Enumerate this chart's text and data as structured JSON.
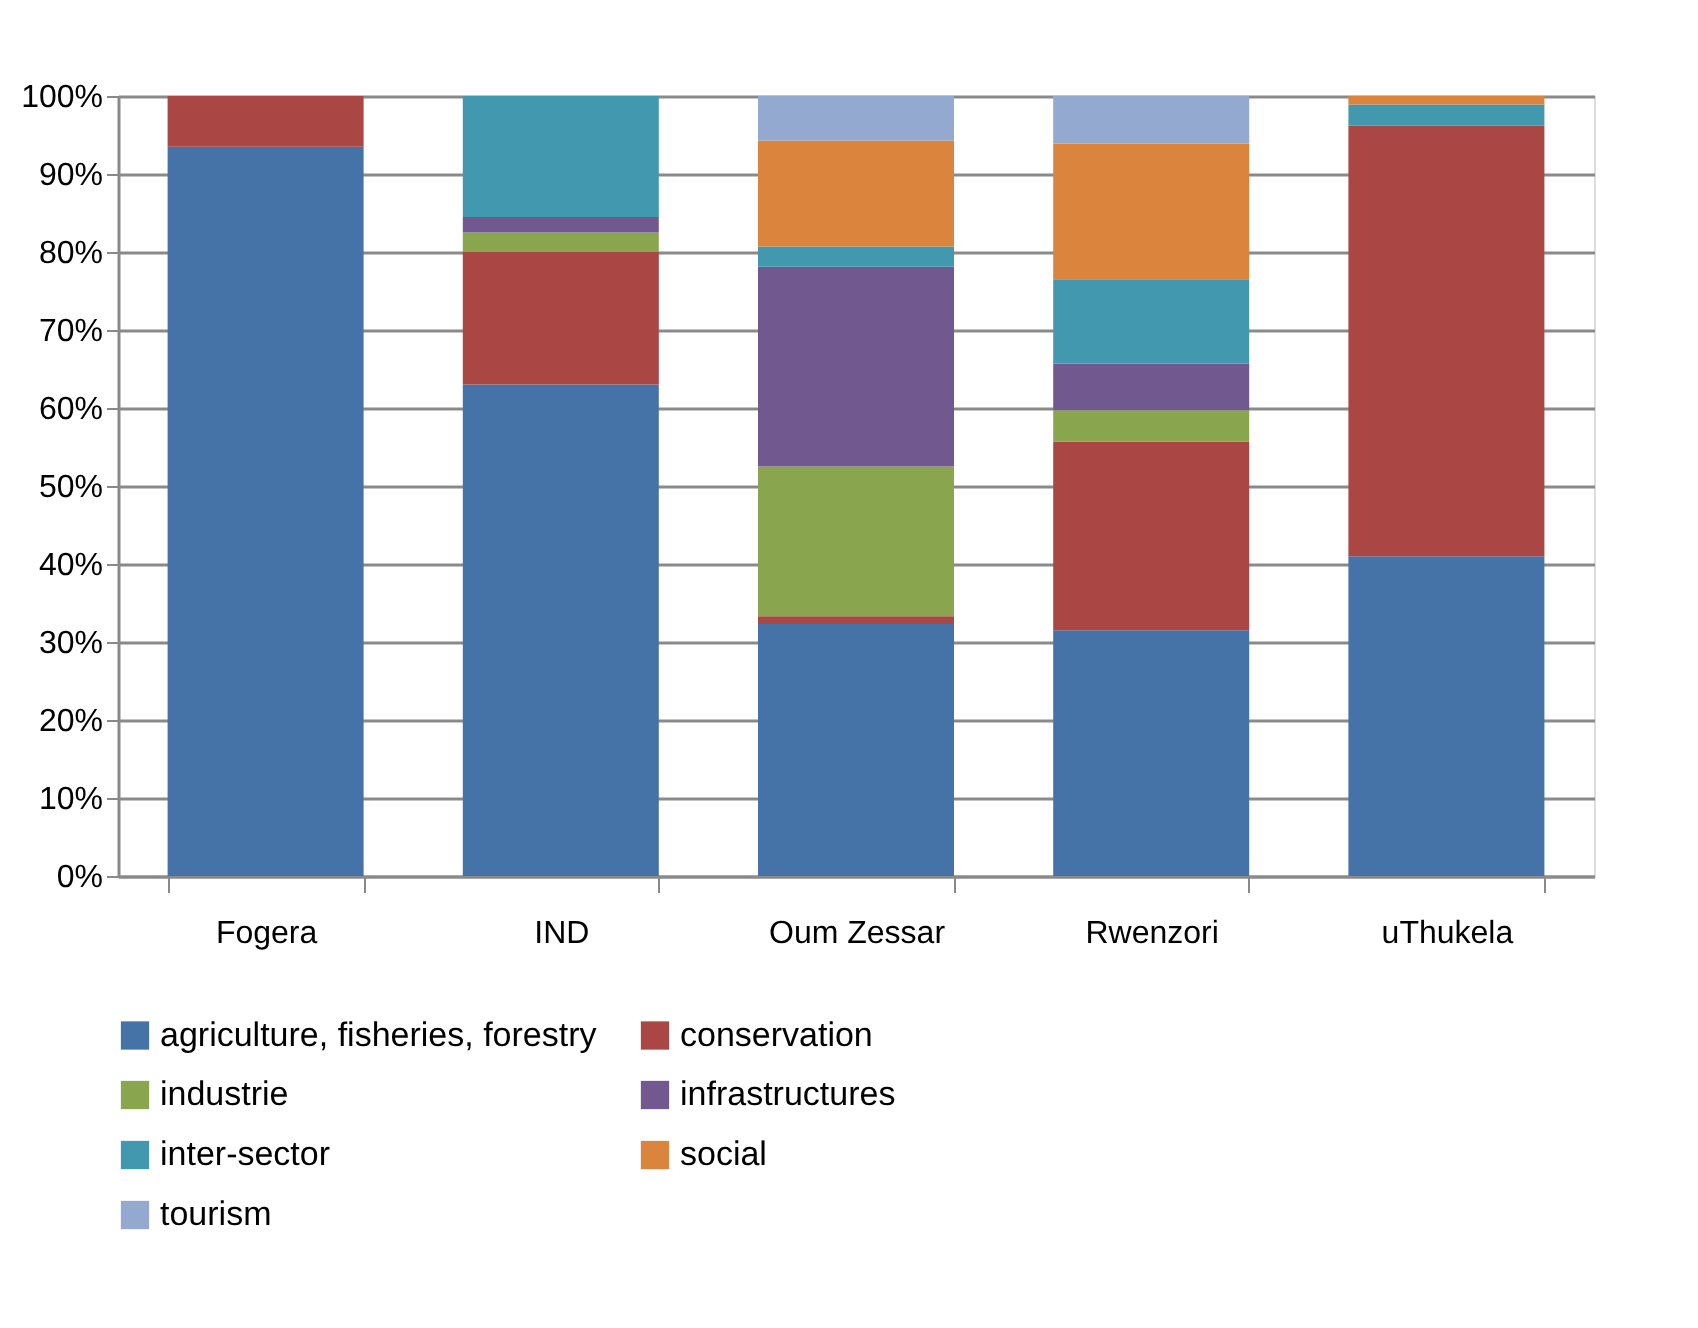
{
  "chart_data": {
    "type": "bar",
    "stacked": true,
    "categories": [
      "Fogera",
      "IND",
      "Oum Zessar",
      "Rwenzori",
      "uThukela"
    ],
    "series": [
      {
        "name": "agriculture, fisheries, forestry",
        "color": "#4572a7",
        "values": [
          93.5,
          63,
          32.3,
          31.5,
          41
        ]
      },
      {
        "name": "conservation",
        "color": "#aa4643",
        "values": [
          6.5,
          17,
          1,
          24.2,
          55.2
        ]
      },
      {
        "name": "industrie",
        "color": "#89a54e",
        "values": [
          0,
          2.5,
          19.2,
          4,
          0
        ]
      },
      {
        "name": "infrastructures",
        "color": "#71588f",
        "values": [
          0,
          2,
          25.6,
          6,
          0
        ]
      },
      {
        "name": "inter-sector",
        "color": "#4198af",
        "values": [
          0,
          15.5,
          2.6,
          10.8,
          2.7
        ]
      },
      {
        "name": "social",
        "color": "#db843d",
        "values": [
          0,
          0,
          13.6,
          17.4,
          1.1
        ]
      },
      {
        "name": "tourism",
        "color": "#93a9cf",
        "values": [
          0,
          0,
          5.7,
          6.1,
          0
        ]
      }
    ],
    "ylim": [
      0,
      100
    ],
    "yticks": [
      {
        "value": 0,
        "label": "0%"
      },
      {
        "value": 10,
        "label": "10%"
      },
      {
        "value": 20,
        "label": "20%"
      },
      {
        "value": 30,
        "label": "30%"
      },
      {
        "value": 40,
        "label": "40%"
      },
      {
        "value": 50,
        "label": "50%"
      },
      {
        "value": 60,
        "label": "60%"
      },
      {
        "value": 70,
        "label": "70%"
      },
      {
        "value": 80,
        "label": "80%"
      },
      {
        "value": 90,
        "label": "90%"
      },
      {
        "value": 100,
        "label": "100%"
      }
    ],
    "grid": "y",
    "legend": "bottom"
  }
}
